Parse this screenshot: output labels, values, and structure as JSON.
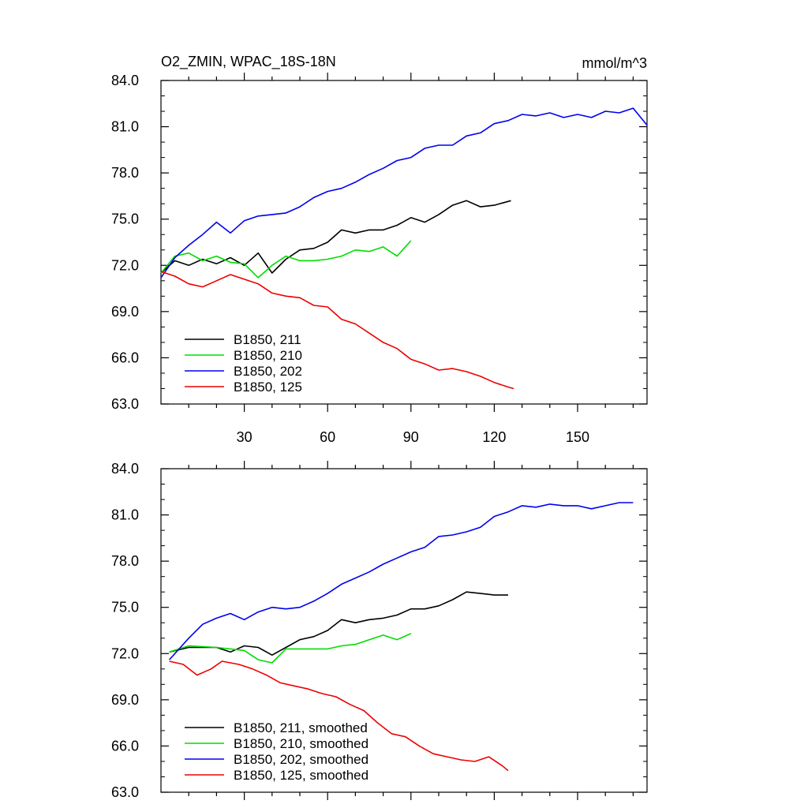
{
  "chart_data": [
    {
      "type": "line",
      "title_left": "O2_ZMIN, WPAC_18S-18N",
      "title_right": "mmol/m^3",
      "xlim": [
        0,
        175
      ],
      "ylim": [
        63,
        84
      ],
      "yticks": [
        "63.0",
        "66.0",
        "69.0",
        "72.0",
        "75.0",
        "78.0",
        "81.0",
        "84.0"
      ],
      "xticks": [
        "30",
        "60",
        "90",
        "120",
        "150"
      ],
      "series": [
        {
          "name": "B1850, 211",
          "color": "#000000",
          "x": [
            0,
            5,
            10,
            15,
            20,
            25,
            30,
            35,
            40,
            45,
            50,
            55,
            60,
            65,
            70,
            75,
            80,
            85,
            90,
            95,
            100,
            105,
            110,
            115,
            120,
            126
          ],
          "y": [
            71.5,
            72.3,
            72.0,
            72.4,
            72.1,
            72.5,
            72.0,
            72.8,
            71.5,
            72.4,
            73.0,
            73.1,
            73.5,
            74.3,
            74.1,
            74.3,
            74.3,
            74.6,
            75.1,
            74.8,
            75.3,
            75.9,
            76.2,
            75.8,
            75.9,
            76.2
          ]
        },
        {
          "name": "B1850, 210",
          "color": "#00dd00",
          "x": [
            0,
            5,
            10,
            15,
            20,
            25,
            30,
            35,
            40,
            45,
            50,
            55,
            60,
            65,
            70,
            75,
            80,
            85,
            90
          ],
          "y": [
            71.5,
            72.6,
            72.8,
            72.3,
            72.6,
            72.2,
            72.1,
            71.2,
            72.0,
            72.6,
            72.3,
            72.3,
            72.4,
            72.6,
            73.0,
            72.9,
            73.2,
            72.6,
            73.6
          ]
        },
        {
          "name": "B1850, 202",
          "color": "#0000ee",
          "x": [
            0,
            5,
            10,
            15,
            20,
            25,
            30,
            35,
            40,
            45,
            50,
            55,
            60,
            65,
            70,
            75,
            80,
            85,
            90,
            95,
            100,
            105,
            110,
            115,
            120,
            125,
            130,
            135,
            140,
            145,
            150,
            155,
            160,
            165,
            170,
            175
          ],
          "y": [
            71.2,
            72.5,
            73.3,
            74.0,
            74.8,
            74.1,
            74.9,
            75.2,
            75.3,
            75.4,
            75.8,
            76.4,
            76.8,
            77.0,
            77.4,
            77.9,
            78.3,
            78.8,
            79.0,
            79.6,
            79.8,
            79.8,
            80.4,
            80.6,
            81.2,
            81.4,
            81.8,
            81.7,
            81.9,
            81.6,
            81.8,
            81.6,
            82.0,
            81.9,
            82.2,
            81.1
          ]
        },
        {
          "name": "B1850, 125",
          "color": "#ee0000",
          "x": [
            0,
            5,
            10,
            15,
            20,
            25,
            30,
            35,
            40,
            45,
            50,
            55,
            60,
            65,
            70,
            75,
            80,
            85,
            90,
            95,
            100,
            105,
            110,
            115,
            120,
            125,
            127
          ],
          "y": [
            71.6,
            71.3,
            70.8,
            70.6,
            71.0,
            71.4,
            71.1,
            70.8,
            70.2,
            70.0,
            69.9,
            69.4,
            69.3,
            68.5,
            68.2,
            67.6,
            67.0,
            66.6,
            65.9,
            65.6,
            65.2,
            65.3,
            65.1,
            64.8,
            64.4,
            64.1,
            64.0
          ]
        }
      ]
    },
    {
      "type": "line",
      "xlim": [
        0,
        175
      ],
      "ylim": [
        63,
        84
      ],
      "yticks": [
        "63.0",
        "66.0",
        "69.0",
        "72.0",
        "75.0",
        "78.0",
        "81.0",
        "84.0"
      ],
      "series": [
        {
          "name": "B1850, 211, smoothed",
          "color": "#000000",
          "x": [
            3,
            10,
            20,
            25,
            30,
            35,
            40,
            45,
            50,
            55,
            60,
            65,
            70,
            75,
            80,
            85,
            90,
            95,
            100,
            105,
            110,
            115,
            120,
            125
          ],
          "y": [
            72.1,
            72.4,
            72.4,
            72.1,
            72.5,
            72.4,
            71.9,
            72.4,
            72.9,
            73.1,
            73.5,
            74.2,
            74.0,
            74.2,
            74.3,
            74.5,
            74.9,
            74.9,
            75.1,
            75.5,
            76.0,
            75.9,
            75.8,
            75.8
          ]
        },
        {
          "name": "B1850, 210, smoothed",
          "color": "#00dd00",
          "x": [
            3,
            10,
            20,
            25,
            30,
            35,
            40,
            45,
            50,
            55,
            60,
            65,
            70,
            75,
            80,
            85,
            90
          ],
          "y": [
            72.1,
            72.5,
            72.4,
            72.3,
            72.2,
            71.6,
            71.4,
            72.3,
            72.3,
            72.3,
            72.3,
            72.5,
            72.6,
            72.9,
            73.2,
            72.9,
            73.3
          ]
        },
        {
          "name": "B1850, 202, smoothed",
          "color": "#0000ee",
          "x": [
            3,
            10,
            15,
            20,
            25,
            30,
            35,
            40,
            45,
            50,
            55,
            60,
            65,
            70,
            75,
            80,
            85,
            90,
            95,
            100,
            105,
            110,
            115,
            120,
            125,
            130,
            135,
            140,
            145,
            150,
            155,
            160,
            165,
            170,
            170
          ],
          "y": [
            71.6,
            73.0,
            73.9,
            74.3,
            74.6,
            74.2,
            74.7,
            75.0,
            74.9,
            75.0,
            75.4,
            75.9,
            76.5,
            76.9,
            77.3,
            77.8,
            78.2,
            78.6,
            78.9,
            79.6,
            79.7,
            79.9,
            80.2,
            80.9,
            81.2,
            81.6,
            81.5,
            81.7,
            81.6,
            81.6,
            81.4,
            81.6,
            81.8,
            81.8,
            81.8
          ]
        },
        {
          "name": "B1850, 125, smoothed",
          "color": "#ee0000",
          "x": [
            3,
            8,
            13,
            18,
            22,
            28,
            33,
            38,
            43,
            48,
            53,
            58,
            63,
            68,
            73,
            78,
            83,
            88,
            93,
            98,
            103,
            108,
            113,
            118,
            123,
            125
          ],
          "y": [
            71.5,
            71.3,
            70.6,
            71.0,
            71.5,
            71.3,
            71.0,
            70.6,
            70.1,
            69.9,
            69.7,
            69.4,
            69.2,
            68.7,
            68.3,
            67.5,
            66.8,
            66.6,
            66.0,
            65.5,
            65.3,
            65.1,
            65.0,
            65.3,
            64.7,
            64.4
          ]
        }
      ]
    }
  ]
}
